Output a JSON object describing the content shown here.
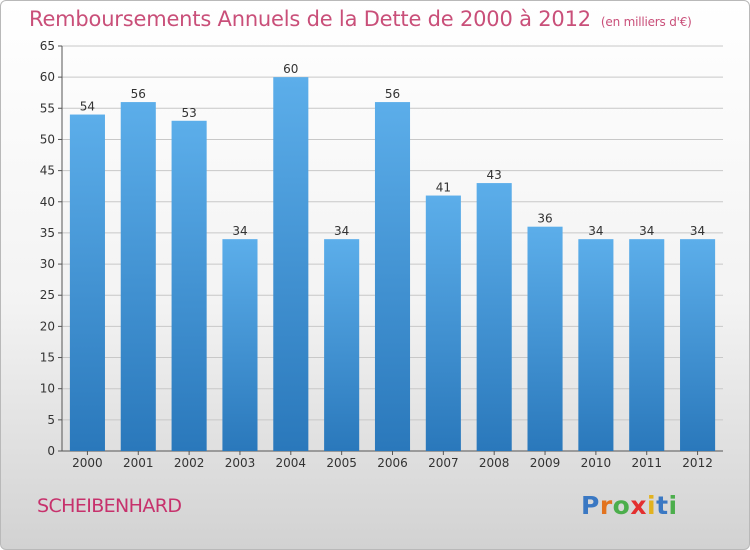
{
  "header": {
    "title": "Remboursements Annuels de la Dette de 2000 à 2012",
    "subtitle": "(en milliers d'€)"
  },
  "footer": {
    "commune": "SCHEIBENHARD",
    "logo": "Proxiti",
    "logo_letters": [
      {
        "char": "P",
        "color": "#3a78c3"
      },
      {
        "char": "r",
        "color": "#e2731f"
      },
      {
        "char": "o",
        "color": "#4cae4c"
      },
      {
        "char": "x",
        "color": "#e32f2f"
      },
      {
        "char": "i",
        "color": "#e2b21f"
      },
      {
        "char": "t",
        "color": "#3a78c3"
      },
      {
        "char": "i",
        "color": "#4cae4c"
      }
    ]
  },
  "colors": {
    "bar_top": "#5caeea",
    "bar_bottom": "#2a78bb",
    "grid": "#c8c8c8",
    "axis_text": "#333333",
    "title": "#c94f79"
  },
  "chart_data": {
    "type": "bar",
    "title": "Remboursements Annuels de la Dette de 2000 à 2012",
    "xlabel": "",
    "ylabel": "",
    "categories": [
      "2000",
      "2001",
      "2002",
      "2003",
      "2004",
      "2005",
      "2006",
      "2007",
      "2008",
      "2009",
      "2010",
      "2011",
      "2012"
    ],
    "values": [
      54,
      56,
      53,
      34,
      60,
      34,
      56,
      41,
      43,
      36,
      34,
      34,
      34
    ],
    "ylim": [
      0,
      65
    ],
    "yticks": [
      0,
      5,
      10,
      15,
      20,
      25,
      30,
      35,
      40,
      45,
      50,
      55,
      60,
      65
    ],
    "grid": "horizontal",
    "data_labels": true
  }
}
